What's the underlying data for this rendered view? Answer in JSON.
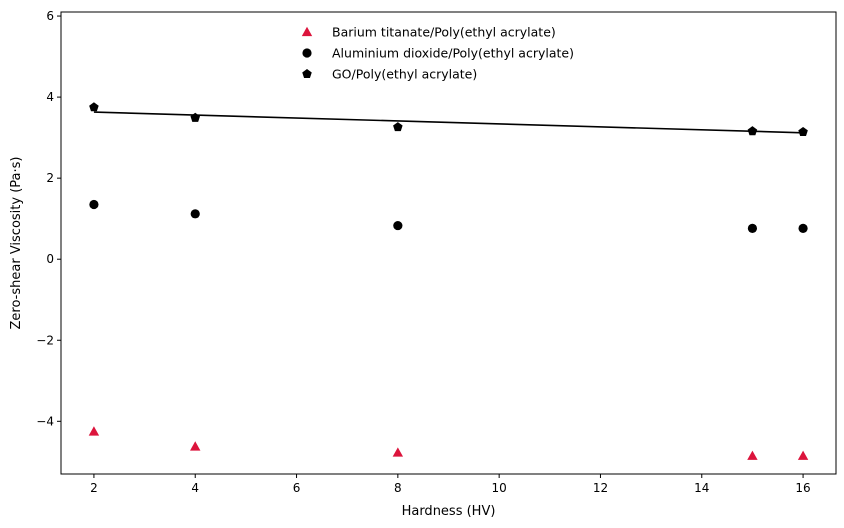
{
  "chart_data": {
    "type": "scatter",
    "title": "",
    "xlabel": "Hardness (HV)",
    "ylabel": "Zero-shear Viscosity (Pa·s)",
    "xlim": [
      1.35,
      16.65
    ],
    "ylim": [
      -5.3,
      6.1
    ],
    "x_ticks": [
      2,
      4,
      6,
      8,
      10,
      12,
      14,
      16
    ],
    "y_ticks": [
      -4,
      -2,
      0,
      2,
      4,
      6
    ],
    "grid": false,
    "legend_position": "top-center",
    "series": [
      {
        "name": "Barium titanate/Poly(ethyl acrylate)",
        "marker": "triangle",
        "color": "#dc143c",
        "x": [
          2,
          4,
          8,
          15,
          16
        ],
        "y": [
          -4.25,
          -4.62,
          -4.77,
          -4.85,
          -4.85
        ]
      },
      {
        "name": "Aluminium dioxide/Poly(ethyl acrylate)",
        "marker": "circle",
        "color": "#000000",
        "x": [
          2,
          4,
          8,
          15,
          16
        ],
        "y": [
          1.35,
          1.12,
          0.83,
          0.76,
          0.76
        ]
      },
      {
        "name": "GO/Poly(ethyl acrylate)",
        "marker": "pentagon",
        "color": "#000000",
        "x": [
          2,
          4,
          8,
          15,
          16
        ],
        "y": [
          3.75,
          3.49,
          3.26,
          3.16,
          3.14
        ]
      }
    ],
    "fit_line": {
      "color": "#000000",
      "x": [
        2,
        16
      ],
      "y": [
        3.63,
        3.12
      ]
    }
  }
}
